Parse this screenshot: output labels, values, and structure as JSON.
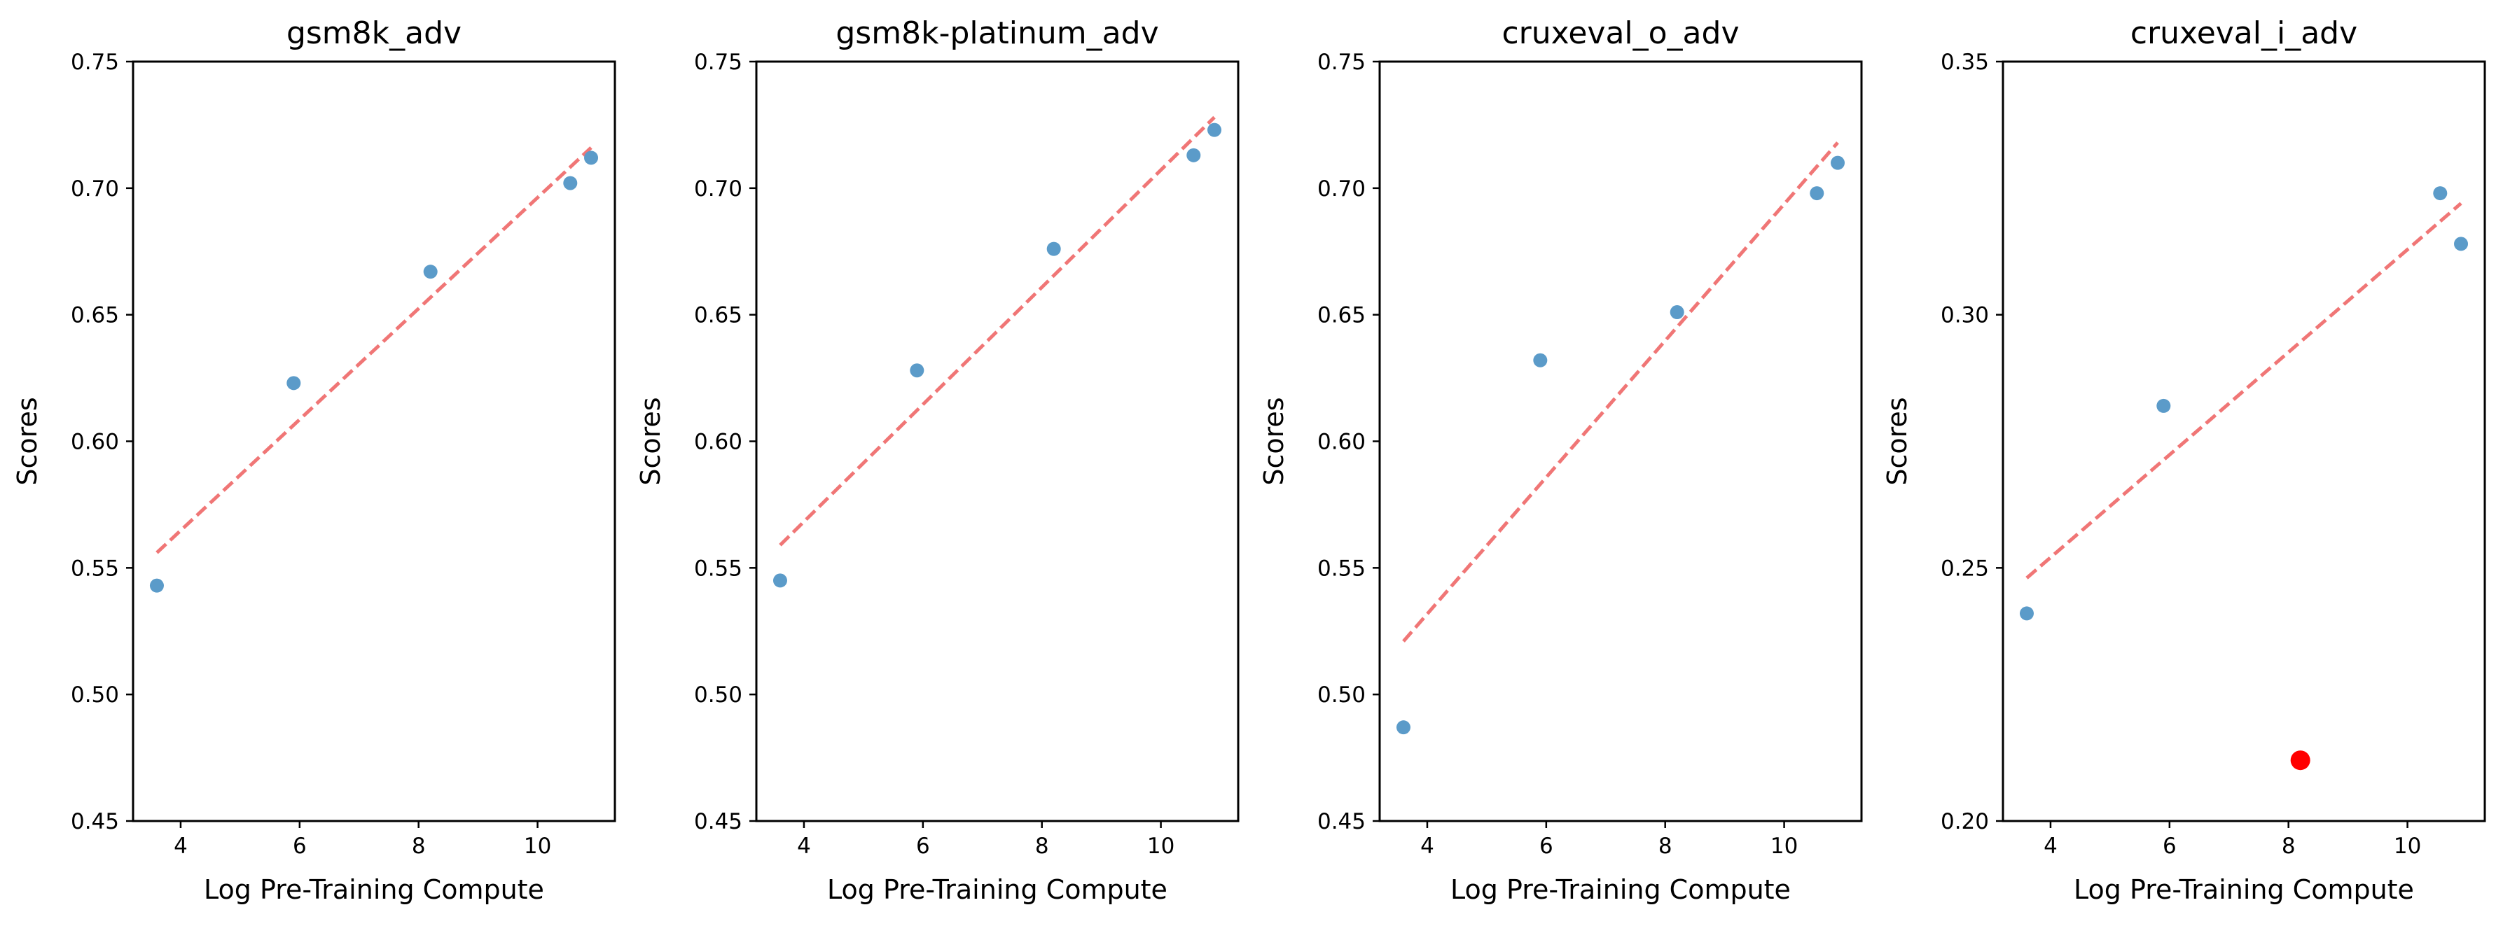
{
  "chart_data": [
    {
      "type": "scatter",
      "title": "gsm8k_adv",
      "xlabel": "Log Pre-Training Compute",
      "ylabel": "Scores",
      "xlim": [
        3.2,
        11.3
      ],
      "ylim": [
        0.45,
        0.75
      ],
      "xticks": [
        4,
        6,
        8,
        10
      ],
      "xtick_labels": [
        "4",
        "6",
        "8",
        "10"
      ],
      "yticks": [
        0.45,
        0.5,
        0.55,
        0.6,
        0.65,
        0.7,
        0.75
      ],
      "ytick_labels": [
        "0.45",
        "0.50",
        "0.55",
        "0.60",
        "0.65",
        "0.70",
        "0.75"
      ],
      "grid": false,
      "series": [
        {
          "values": [
            {
              "x": 3.6,
              "y": 0.543
            },
            {
              "x": 5.9,
              "y": 0.623
            },
            {
              "x": 8.2,
              "y": 0.667
            },
            {
              "x": 10.55,
              "y": 0.702
            },
            {
              "x": 10.9,
              "y": 0.712
            }
          ]
        }
      ],
      "trend_line": {
        "x": [
          3.6,
          10.9
        ],
        "y": [
          0.556,
          0.716
        ],
        "style": "dashed"
      },
      "highlight_points": []
    },
    {
      "type": "scatter",
      "title": "gsm8k-platinum_adv",
      "xlabel": "Log Pre-Training Compute",
      "ylabel": "Scores",
      "xlim": [
        3.2,
        11.3
      ],
      "ylim": [
        0.45,
        0.75
      ],
      "xticks": [
        4,
        6,
        8,
        10
      ],
      "xtick_labels": [
        "4",
        "6",
        "8",
        "10"
      ],
      "yticks": [
        0.45,
        0.5,
        0.55,
        0.6,
        0.65,
        0.7,
        0.75
      ],
      "ytick_labels": [
        "0.45",
        "0.50",
        "0.55",
        "0.60",
        "0.65",
        "0.70",
        "0.75"
      ],
      "grid": false,
      "series": [
        {
          "values": [
            {
              "x": 3.6,
              "y": 0.545
            },
            {
              "x": 5.9,
              "y": 0.628
            },
            {
              "x": 8.2,
              "y": 0.676
            },
            {
              "x": 10.55,
              "y": 0.713
            },
            {
              "x": 10.9,
              "y": 0.723
            }
          ]
        }
      ],
      "trend_line": {
        "x": [
          3.6,
          10.9
        ],
        "y": [
          0.559,
          0.728
        ],
        "style": "dashed"
      },
      "highlight_points": []
    },
    {
      "type": "scatter",
      "title": "cruxeval_o_adv",
      "xlabel": "Log Pre-Training Compute",
      "ylabel": "Scores",
      "xlim": [
        3.2,
        11.3
      ],
      "ylim": [
        0.45,
        0.75
      ],
      "xticks": [
        4,
        6,
        8,
        10
      ],
      "xtick_labels": [
        "4",
        "6",
        "8",
        "10"
      ],
      "yticks": [
        0.45,
        0.5,
        0.55,
        0.6,
        0.65,
        0.7,
        0.75
      ],
      "ytick_labels": [
        "0.45",
        "0.50",
        "0.55",
        "0.60",
        "0.65",
        "0.70",
        "0.75"
      ],
      "grid": false,
      "series": [
        {
          "values": [
            {
              "x": 3.6,
              "y": 0.487
            },
            {
              "x": 5.9,
              "y": 0.632
            },
            {
              "x": 8.2,
              "y": 0.651
            },
            {
              "x": 10.55,
              "y": 0.698
            },
            {
              "x": 10.9,
              "y": 0.71
            }
          ]
        }
      ],
      "trend_line": {
        "x": [
          3.6,
          10.9
        ],
        "y": [
          0.521,
          0.718
        ],
        "style": "dashed"
      },
      "highlight_points": []
    },
    {
      "type": "scatter",
      "title": "cruxeval_i_adv",
      "xlabel": "Log Pre-Training Compute",
      "ylabel": "Scores",
      "xlim": [
        3.2,
        11.3
      ],
      "ylim": [
        0.2,
        0.35
      ],
      "xticks": [
        4,
        6,
        8,
        10
      ],
      "xtick_labels": [
        "4",
        "6",
        "8",
        "10"
      ],
      "yticks": [
        0.2,
        0.25,
        0.3,
        0.35
      ],
      "ytick_labels": [
        "0.20",
        "0.25",
        "0.30",
        "0.35"
      ],
      "grid": false,
      "series": [
        {
          "values": [
            {
              "x": 3.6,
              "y": 0.241
            },
            {
              "x": 5.9,
              "y": 0.282
            },
            {
              "x": 10.55,
              "y": 0.324
            },
            {
              "x": 10.9,
              "y": 0.314
            }
          ]
        }
      ],
      "trend_line": {
        "x": [
          3.6,
          10.9
        ],
        "y": [
          0.248,
          0.322
        ],
        "style": "dashed"
      },
      "highlight_points": [
        {
          "x": 8.2,
          "y": 0.212
        }
      ]
    }
  ],
  "colors": {
    "point": "#5b9bc9",
    "trend": "#f07676",
    "highlight": "#ff0000"
  }
}
